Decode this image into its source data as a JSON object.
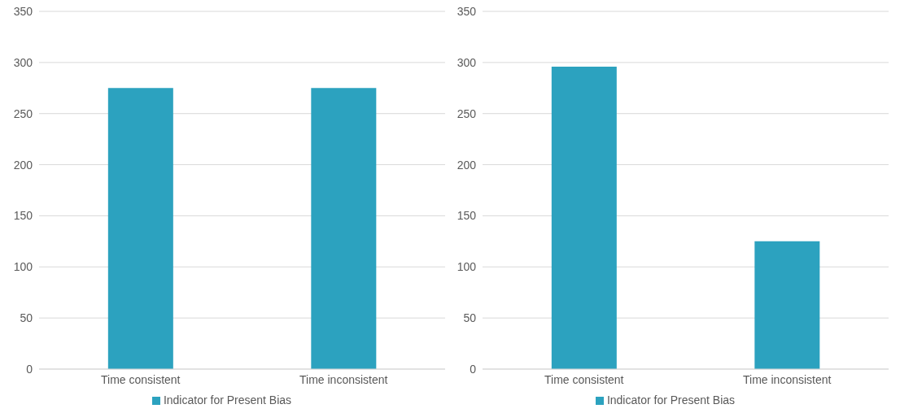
{
  "chart_data": [
    {
      "type": "bar",
      "categories": [
        "Time consistent",
        "Time inconsistent"
      ],
      "series": [
        {
          "name": "Indicator for Present Bias",
          "color": "#2ca2bf",
          "values": [
            275,
            275
          ]
        }
      ],
      "ylim": [
        0,
        350
      ],
      "yticks": [
        0,
        50,
        100,
        150,
        200,
        250,
        300,
        350
      ],
      "grid": "y",
      "legend": "bottom"
    },
    {
      "type": "bar",
      "categories": [
        "Time consistent",
        "Time inconsistent"
      ],
      "series": [
        {
          "name": "Indicator for Present Bias",
          "color": "#2ca2bf",
          "values": [
            296,
            125
          ]
        }
      ],
      "ylim": [
        0,
        350
      ],
      "yticks": [
        0,
        50,
        100,
        150,
        200,
        250,
        300,
        350
      ],
      "grid": "y",
      "legend": "bottom"
    }
  ]
}
